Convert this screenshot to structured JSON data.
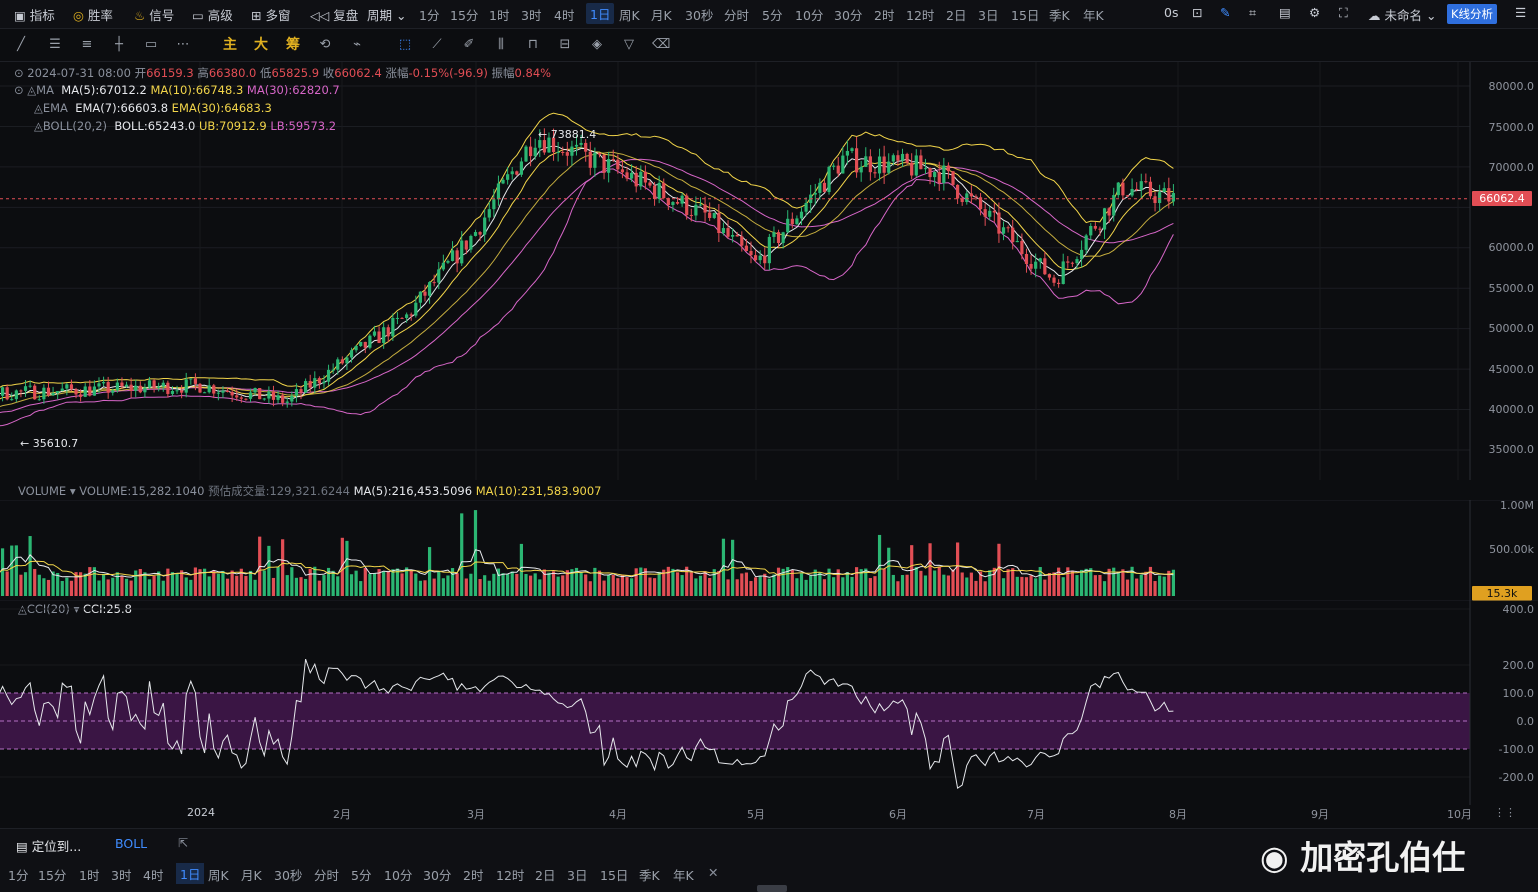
{
  "topbar": {
    "indicator": "指标",
    "winrate": "胜率",
    "signal": "信号",
    "highlevel": "高级",
    "multiwindow": "多窗",
    "replay": "复盘",
    "period": "周期",
    "timeframes": [
      "1分",
      "15分",
      "1时",
      "3时",
      "4时",
      "1日",
      "周K",
      "月K",
      "30秒",
      "分时",
      "5分",
      "10分",
      "30分",
      "2时",
      "12时",
      "2日",
      "3日",
      "15日",
      "季K",
      "年K"
    ],
    "active_timeframe": "1日",
    "latency": "0s",
    "unnamed": "未命名",
    "kline_analysis": "K线分析"
  },
  "toolbar": {
    "main": "主",
    "big": "大",
    "chips": "筹"
  },
  "legend": {
    "date": "2024-07-31 08:00",
    "open_label": "开",
    "open": "66159.3",
    "high_label": "高",
    "high": "66380.0",
    "low_label": "低",
    "low": "65825.9",
    "close_label": "收",
    "close": "66062.4",
    "change_label": "涨幅",
    "change": "-0.15%(-96.9)",
    "amplitude_label": "振幅",
    "amplitude": "0.84%",
    "ma_name": "MA",
    "ma5": "MA(5):67012.2",
    "ma10": "MA(10):66748.3",
    "ma30": "MA(30):62820.7",
    "ema_name": "EMA",
    "ema7": "EMA(7):66603.8",
    "ema30": "EMA(30):64683.3",
    "boll_name": "BOLL(20,2)",
    "boll": "BOLL:65243.0",
    "ub": "UB:70912.9",
    "lb": "LB:59573.2"
  },
  "price_axis": [
    "80000.0",
    "75000.0",
    "70000.0",
    "66062.4",
    "60000.0",
    "55000.0",
    "50000.0",
    "45000.0",
    "40000.0",
    "35000.0"
  ],
  "annotations": {
    "high_mark": "← 73881.4",
    "low_mark": "← 35610.7"
  },
  "volume_legend": {
    "name": "VOLUME",
    "volume": "VOLUME:15,282.1040",
    "estimate": "预估成交量:129,321.6244",
    "ma5": "MA(5):216,453.5096",
    "ma10": "MA(10):231,583.9007"
  },
  "volume_axis": [
    "1.00M",
    "500.00k",
    "15.3k"
  ],
  "cci_legend": {
    "name": "CCI(20)",
    "value": "CCI:25.8"
  },
  "cci_axis": [
    "400.0",
    "200.0",
    "100.0",
    "0.0",
    "-100.0",
    "-200.0"
  ],
  "x_axis": [
    "2024",
    "2月",
    "3月",
    "4月",
    "5月",
    "6月",
    "7月",
    "8月",
    "9月",
    "10月"
  ],
  "bottombar": {
    "locate": "定位到...",
    "boll": "BOLL",
    "timeframes": [
      "1分",
      "15分",
      "1时",
      "3时",
      "4时",
      "1日",
      "周K",
      "月K",
      "30秒",
      "分时",
      "5分",
      "10分",
      "30分",
      "2时",
      "12时",
      "2日",
      "3日",
      "15日",
      "季K",
      "年K"
    ],
    "active_timeframe": "1日"
  },
  "watermark": "加密孔伯仕",
  "colors": {
    "up": "#2bb673",
    "down": "#e24e55",
    "accent": "#3f8cff",
    "boll_band": "#d766c8",
    "ma_yellow": "#f2d54a"
  },
  "chart_data": [
    {
      "type": "candlestick",
      "title": "",
      "series_approx_close": [
        {
          "date": "2024-01",
          "value": 43000
        },
        {
          "date": "2024-01-20",
          "value": 41000
        },
        {
          "date": "2024-02-15",
          "value": 51500
        },
        {
          "date": "2024-03-01",
          "value": 62000
        },
        {
          "date": "2024-03-14",
          "value": 73881.4
        },
        {
          "date": "2024-04-01",
          "value": 69500
        },
        {
          "date": "2024-04-20",
          "value": 64000
        },
        {
          "date": "2024-05-01",
          "value": 58000
        },
        {
          "date": "2024-05-20",
          "value": 71000
        },
        {
          "date": "2024-06-10",
          "value": 69500
        },
        {
          "date": "2024-07-05",
          "value": 56000
        },
        {
          "date": "2024-07-20",
          "value": 67500
        },
        {
          "date": "2024-07-31",
          "value": 66062.4
        }
      ],
      "ylim": [
        33000,
        82000
      ]
    },
    {
      "type": "bar",
      "title": "",
      "ylim": [
        0,
        1200000
      ]
    },
    {
      "type": "line",
      "title": "",
      "ylim": [
        -260,
        420
      ]
    }
  ]
}
